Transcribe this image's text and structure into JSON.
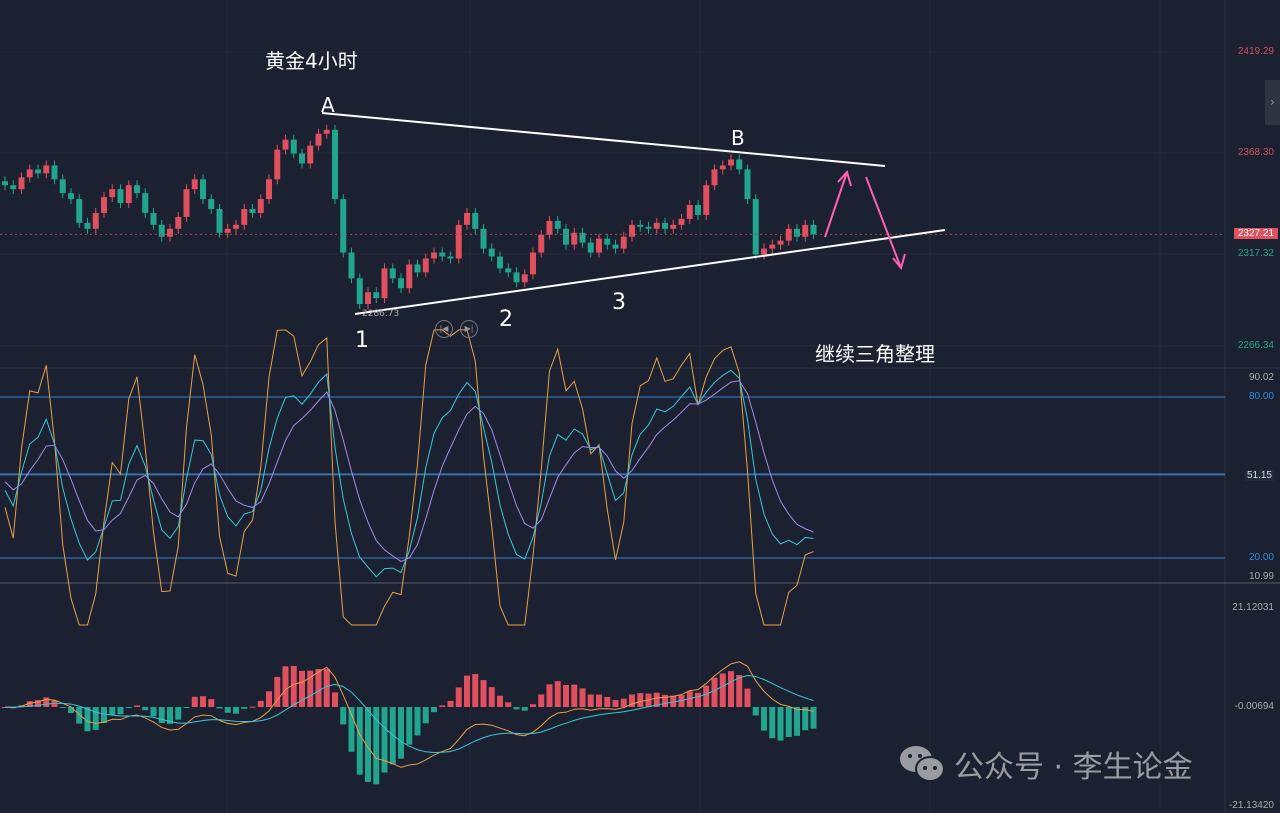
{
  "title": "黄金4小时",
  "annotations": {
    "point_a": "A",
    "point_b": "B",
    "label_1": "1",
    "label_2": "2",
    "label_3": "3",
    "comment": "继续三角整理",
    "low_marker": "2286.73"
  },
  "watermark": "公众号 · 李生论金",
  "colors": {
    "up": "#e0505f",
    "down": "#22a58e",
    "background": "#1b2130",
    "trendline": "#ffffff",
    "arrow": "#ff5fb4",
    "k": "#3cc6d6",
    "d": "#a58ae6",
    "j": "#e8a048",
    "level": "#2f7fd0"
  },
  "chart_data": [
    {
      "type": "candlestick",
      "title": "黄金4小时",
      "price_axis_ticks": [
        "2419.29",
        "2368.30",
        "2317.32",
        "2266.34"
      ],
      "last_price": "2327.21",
      "closes": [
        2352,
        2350,
        2356,
        2360,
        2358,
        2362,
        2355,
        2348,
        2345,
        2333,
        2330,
        2338,
        2346,
        2350,
        2343,
        2352,
        2348,
        2338,
        2332,
        2326,
        2330,
        2336,
        2350,
        2355,
        2345,
        2340,
        2328,
        2330,
        2332,
        2340,
        2338,
        2345,
        2355,
        2370,
        2375,
        2368,
        2363,
        2372,
        2378,
        2380,
        2345,
        2318,
        2305,
        2292,
        2298,
        2295,
        2310,
        2305,
        2300,
        2312,
        2308,
        2315,
        2318,
        2316,
        2315,
        2332,
        2338,
        2330,
        2320,
        2316,
        2310,
        2308,
        2303,
        2307,
        2318,
        2327,
        2334,
        2330,
        2322,
        2328,
        2323,
        2318,
        2325,
        2322,
        2320,
        2326,
        2332,
        2331,
        2330,
        2333,
        2330,
        2332,
        2335,
        2342,
        2337,
        2352,
        2360,
        2362,
        2365,
        2360,
        2345,
        2317,
        2320,
        2322,
        2324,
        2330,
        2326,
        2332,
        2327.21
      ],
      "ylim": [
        2266.34,
        2419.29
      ]
    },
    {
      "type": "line",
      "indicator": "KDJ",
      "axis_ticks": [
        "90.02",
        "80.00",
        "51.15",
        "20.00",
        "10.99"
      ],
      "levels": [
        80,
        20
      ],
      "current": "51.15"
    },
    {
      "type": "bar",
      "indicator": "MACD",
      "axis_ticks": [
        "21.12031",
        "-0.00694",
        "-21.13420"
      ]
    }
  ]
}
